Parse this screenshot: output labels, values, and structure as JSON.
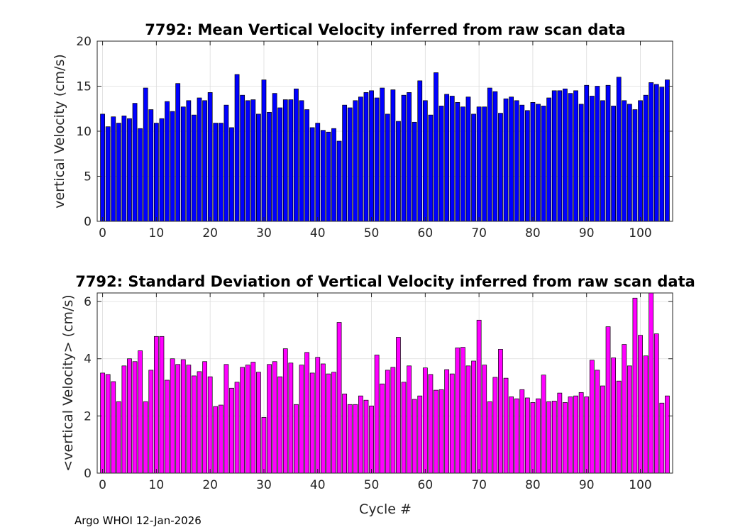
{
  "chart_data": [
    {
      "type": "bar",
      "title": "7792: Mean Vertical Velocity inferred from raw scan data",
      "xlabel": "",
      "ylabel": "vertical Velocity (cm/s)",
      "xlim": [
        -1,
        106
      ],
      "ylim": [
        0,
        20
      ],
      "xticks": [
        0,
        10,
        20,
        30,
        40,
        50,
        60,
        70,
        80,
        90,
        100
      ],
      "yticks": [
        0,
        5,
        10,
        15,
        20
      ],
      "bar_color": "#0000ff",
      "grid": true,
      "x": [
        0,
        1,
        2,
        3,
        4,
        5,
        6,
        7,
        8,
        9,
        10,
        11,
        12,
        13,
        14,
        15,
        16,
        17,
        18,
        19,
        20,
        21,
        22,
        23,
        24,
        25,
        26,
        27,
        28,
        29,
        30,
        31,
        32,
        33,
        34,
        35,
        36,
        37,
        38,
        39,
        40,
        41,
        42,
        43,
        44,
        45,
        46,
        47,
        48,
        49,
        50,
        51,
        52,
        53,
        54,
        55,
        56,
        57,
        58,
        59,
        60,
        61,
        62,
        63,
        64,
        65,
        66,
        67,
        68,
        69,
        70,
        71,
        72,
        73,
        74,
        75,
        76,
        77,
        78,
        79,
        80,
        81,
        82,
        83,
        84,
        85,
        86,
        87,
        88,
        89,
        90,
        91,
        92,
        93,
        94,
        95,
        96,
        97,
        98,
        99,
        100,
        101,
        102,
        103,
        104,
        105
      ],
      "values": [
        11.9,
        10.5,
        11.6,
        10.9,
        11.7,
        11.4,
        13.1,
        10.3,
        14.8,
        12.4,
        10.9,
        11.4,
        13.3,
        12.2,
        15.3,
        12.7,
        13.4,
        11.8,
        13.7,
        13.4,
        14.3,
        10.9,
        10.9,
        12.9,
        10.4,
        16.3,
        14.0,
        13.4,
        13.5,
        11.9,
        15.7,
        12.1,
        14.2,
        12.6,
        13.5,
        13.5,
        14.7,
        13.4,
        12.4,
        10.4,
        10.9,
        10.1,
        9.9,
        10.3,
        8.9,
        12.9,
        12.6,
        13.4,
        13.8,
        14.3,
        14.5,
        13.7,
        14.8,
        11.9,
        14.6,
        11.1,
        14.0,
        14.3,
        11.0,
        15.6,
        13.4,
        11.8,
        16.5,
        12.8,
        14.1,
        13.9,
        13.2,
        12.7,
        13.8,
        11.9,
        12.7,
        12.7,
        14.8,
        14.4,
        12.0,
        13.6,
        13.8,
        13.4,
        12.9,
        12.3,
        13.2,
        13.0,
        12.8,
        13.7,
        14.5,
        14.5,
        14.7,
        14.2,
        14.5,
        13.0,
        15.1,
        13.9,
        15.0,
        13.4,
        15.1,
        12.8,
        16.0,
        13.4,
        13.0,
        12.4,
        13.4,
        14.0,
        15.4,
        15.2,
        14.9,
        15.7
      ]
    },
    {
      "type": "bar",
      "title": "7792: Standard Deviation of Vertical Velocity inferred from raw scan data",
      "xlabel": "Cycle #",
      "ylabel": "<vertical Velocity> (cm/s)",
      "xlim": [
        -1,
        106
      ],
      "ylim": [
        0,
        6.3
      ],
      "xticks": [
        0,
        10,
        20,
        30,
        40,
        50,
        60,
        70,
        80,
        90,
        100
      ],
      "yticks": [
        0,
        2,
        4,
        6
      ],
      "bar_color": "#ff00ff",
      "grid": true,
      "x": [
        0,
        1,
        2,
        3,
        4,
        5,
        6,
        7,
        8,
        9,
        10,
        11,
        12,
        13,
        14,
        15,
        16,
        17,
        18,
        19,
        20,
        21,
        22,
        23,
        24,
        25,
        26,
        27,
        28,
        29,
        30,
        31,
        32,
        33,
        34,
        35,
        36,
        37,
        38,
        39,
        40,
        41,
        42,
        43,
        44,
        45,
        46,
        47,
        48,
        49,
        50,
        51,
        52,
        53,
        54,
        55,
        56,
        57,
        58,
        59,
        60,
        61,
        62,
        63,
        64,
        65,
        66,
        67,
        68,
        69,
        70,
        71,
        72,
        73,
        74,
        75,
        76,
        77,
        78,
        79,
        80,
        81,
        82,
        83,
        84,
        85,
        86,
        87,
        88,
        89,
        90,
        91,
        92,
        93,
        94,
        95,
        96,
        97,
        98,
        99,
        100,
        101,
        102,
        103,
        104,
        105
      ],
      "values": [
        3.5,
        3.45,
        3.2,
        2.5,
        3.75,
        4.0,
        3.9,
        4.28,
        2.5,
        3.6,
        4.78,
        4.78,
        3.25,
        4.0,
        3.8,
        3.97,
        3.78,
        3.4,
        3.55,
        3.9,
        3.37,
        2.33,
        2.38,
        3.8,
        2.97,
        3.18,
        3.7,
        3.78,
        3.88,
        3.53,
        1.95,
        3.8,
        3.9,
        3.37,
        4.35,
        3.85,
        2.4,
        3.78,
        4.22,
        3.5,
        4.05,
        3.82,
        3.47,
        3.53,
        5.27,
        2.77,
        2.4,
        2.4,
        2.7,
        2.55,
        2.35,
        4.13,
        3.12,
        3.6,
        3.7,
        4.75,
        3.18,
        3.75,
        2.58,
        2.7,
        3.68,
        3.45,
        2.9,
        2.92,
        3.62,
        3.47,
        4.38,
        4.4,
        3.75,
        3.92,
        5.35,
        3.78,
        2.5,
        3.35,
        4.33,
        3.32,
        2.67,
        2.6,
        2.92,
        2.63,
        2.47,
        2.6,
        3.43,
        2.5,
        2.52,
        2.8,
        2.47,
        2.67,
        2.7,
        2.82,
        2.67,
        3.95,
        3.6,
        3.05,
        5.12,
        4.03,
        3.22,
        4.5,
        3.75,
        6.12,
        4.82,
        4.1,
        6.3,
        4.87,
        2.45,
        2.7
      ]
    }
  ],
  "footer": "Argo WHOI 12-Jan-2026"
}
